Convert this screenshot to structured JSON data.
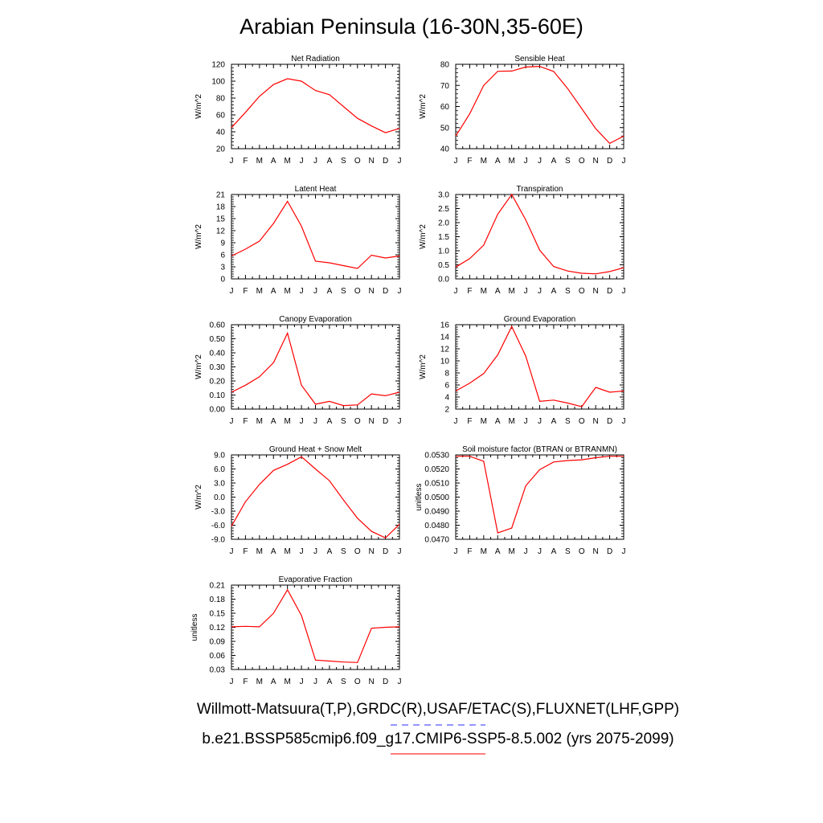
{
  "title": "Arabian Peninsula (16-30N,35-60E)",
  "legend": {
    "observed": "Willmott-Matsuura(T,P),GRDC(R),USAF/ETAC(S),FLUXNET(LHF,GPP)",
    "observed_color": "#7070ff",
    "observed_style": "dashed",
    "model": "b.e21.BSSP585cmip6.f09_g17.CMIP6-SSP5-8.5.002 (yrs 2075-2099)",
    "model_color": "#ff5050",
    "model_style": "solid"
  },
  "series_color": "#ff0000",
  "chart_data": [
    {
      "type": "line",
      "title": "Net Radiation",
      "ylabel": "W/m^2",
      "x": [
        "J",
        "F",
        "M",
        "A",
        "M",
        "J",
        "J",
        "A",
        "S",
        "O",
        "N",
        "D",
        "J"
      ],
      "ylim": [
        20,
        120
      ],
      "yticks": [
        "20",
        "40",
        "60",
        "80",
        "100",
        "120"
      ],
      "values": [
        45,
        63,
        82,
        96,
        103,
        100,
        89,
        84,
        70,
        56,
        47,
        39,
        44
      ]
    },
    {
      "type": "line",
      "title": "Sensible Heat",
      "ylabel": "W/m^2",
      "x": [
        "J",
        "F",
        "M",
        "A",
        "M",
        "J",
        "J",
        "A",
        "S",
        "O",
        "N",
        "D",
        "J"
      ],
      "ylim": [
        40,
        80
      ],
      "yticks": [
        "40",
        "50",
        "60",
        "70",
        "80"
      ],
      "values": [
        46,
        56.5,
        70,
        76.7,
        76.8,
        78.7,
        79,
        76.6,
        68.5,
        59,
        49.5,
        42.5,
        46
      ]
    },
    {
      "type": "line",
      "title": "Latent Heat",
      "ylabel": "W/m^2",
      "x": [
        "J",
        "F",
        "M",
        "A",
        "M",
        "J",
        "J",
        "A",
        "S",
        "O",
        "N",
        "D",
        "J"
      ],
      "ylim": [
        0,
        21
      ],
      "yticks": [
        "0",
        "3",
        "6",
        "9",
        "12",
        "15",
        "18",
        "21"
      ],
      "values": [
        5.7,
        7.4,
        9.4,
        13.8,
        19.3,
        13.1,
        4.4,
        4.0,
        3.3,
        2.6,
        5.9,
        5.2,
        5.7
      ]
    },
    {
      "type": "line",
      "title": "Transpiration",
      "ylabel": "W/m^2",
      "x": [
        "J",
        "F",
        "M",
        "A",
        "M",
        "J",
        "J",
        "A",
        "S",
        "O",
        "N",
        "D",
        "J"
      ],
      "ylim": [
        0,
        3
      ],
      "yticks": [
        "0.0",
        "0.5",
        "1.0",
        "1.5",
        "2.0",
        "2.5",
        "3.0"
      ],
      "values": [
        0.42,
        0.72,
        1.2,
        2.3,
        3.0,
        2.1,
        1.02,
        0.44,
        0.28,
        0.2,
        0.18,
        0.26,
        0.4
      ]
    },
    {
      "type": "line",
      "title": "Canopy Evaporation",
      "ylabel": "W/m^2",
      "x": [
        "J",
        "F",
        "M",
        "A",
        "M",
        "J",
        "J",
        "A",
        "S",
        "O",
        "N",
        "D",
        "J"
      ],
      "ylim": [
        0,
        0.6
      ],
      "yticks": [
        "0.00",
        "0.10",
        "0.20",
        "0.30",
        "0.40",
        "0.50",
        "0.60"
      ],
      "values": [
        0.12,
        0.17,
        0.23,
        0.33,
        0.54,
        0.17,
        0.035,
        0.055,
        0.025,
        0.03,
        0.108,
        0.095,
        0.12
      ]
    },
    {
      "type": "line",
      "title": "Ground Evaporation",
      "ylabel": "W/m^2",
      "x": [
        "J",
        "F",
        "M",
        "A",
        "M",
        "J",
        "J",
        "A",
        "S",
        "O",
        "N",
        "D",
        "J"
      ],
      "ylim": [
        2,
        16
      ],
      "yticks": [
        "2",
        "4",
        "6",
        "8",
        "10",
        "12",
        "14",
        "16"
      ],
      "values": [
        5.0,
        6.3,
        7.9,
        11.0,
        15.7,
        10.8,
        3.3,
        3.5,
        3.0,
        2.4,
        5.6,
        4.8,
        5.0
      ]
    },
    {
      "type": "line",
      "title": "Ground Heat + Snow Melt",
      "ylabel": "W/m^2",
      "x": [
        "J",
        "F",
        "M",
        "A",
        "M",
        "J",
        "J",
        "A",
        "S",
        "O",
        "N",
        "D",
        "J"
      ],
      "ylim": [
        -9,
        9
      ],
      "yticks": [
        "-9.0",
        "-6.0",
        "-3.0",
        "0.0",
        "3.0",
        "6.0",
        "9.0"
      ],
      "values": [
        -6.2,
        -1.0,
        2.7,
        5.7,
        7.0,
        8.6,
        6.0,
        3.5,
        -0.6,
        -4.5,
        -7.3,
        -8.7,
        -5.8
      ]
    },
    {
      "type": "line",
      "title": "Soil moisture factor (BTRAN or BTRANMN)",
      "ylabel": "unitless",
      "x": [
        "J",
        "F",
        "M",
        "A",
        "M",
        "J",
        "J",
        "A",
        "S",
        "O",
        "N",
        "D",
        "J"
      ],
      "ylim": [
        0.047,
        0.053
      ],
      "yticks": [
        "0.0470",
        "0.0480",
        "0.0490",
        "0.0500",
        "0.0510",
        "0.0520",
        "0.0530"
      ],
      "values": [
        0.0529,
        0.0529,
        0.05255,
        0.04745,
        0.0478,
        0.0508,
        0.05195,
        0.0525,
        0.0526,
        0.05265,
        0.0528,
        0.0529,
        0.0529
      ]
    },
    {
      "type": "line",
      "title": "Evaporative Fraction",
      "ylabel": "unitless",
      "x": [
        "J",
        "F",
        "M",
        "A",
        "M",
        "J",
        "J",
        "A",
        "S",
        "O",
        "N",
        "D",
        "J"
      ],
      "ylim": [
        0.03,
        0.21
      ],
      "yticks": [
        "0.03",
        "0.06",
        "0.09",
        "0.12",
        "0.15",
        "0.18",
        "0.21"
      ],
      "values": [
        0.121,
        0.122,
        0.121,
        0.15,
        0.2,
        0.145,
        0.05,
        0.048,
        0.046,
        0.045,
        0.118,
        0.12,
        0.121
      ]
    }
  ]
}
